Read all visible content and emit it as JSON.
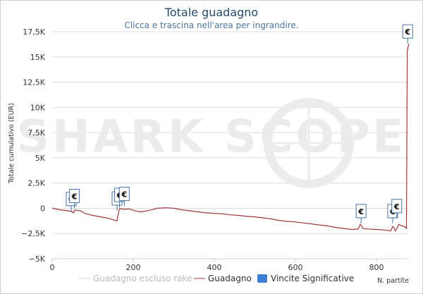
{
  "title": "Totale guadagno",
  "subtitle": "Clicca e trascina nell'area per ingrandire.",
  "watermark": "SHARK SCOPE",
  "colors": {
    "line": "#a0363a",
    "excl_line": "#cccccc",
    "flag_fill": "#ffffff",
    "flag_border": "#4572a7",
    "legend_swatch": "#3d7fd6",
    "grid": "#dddddd",
    "watermark": "#ebebeb"
  },
  "chart_data": {
    "type": "line",
    "title": "Totale guadagno",
    "subtitle": "Clicca e trascina nell'area per ingrandire.",
    "xlabel": "N. partite",
    "ylabel": "Totale cumulativo (EUR)",
    "xlim": [
      0,
      880
    ],
    "ylim": [
      -5000,
      17500
    ],
    "x_ticks": [
      0,
      200,
      400,
      600,
      800
    ],
    "x_tick_labels": [
      "0",
      "200",
      "400",
      "600",
      "800"
    ],
    "y_ticks": [
      -5000,
      -2500,
      0,
      2500,
      5000,
      7500,
      10000,
      12500,
      15000,
      17500
    ],
    "y_tick_labels": [
      "−5K",
      "−2,5K",
      "0",
      "2,5K",
      "5K",
      "7,5K",
      "10K",
      "12,5K",
      "15K",
      "17,5K"
    ],
    "grid": "horizontal",
    "legend_position": "bottom",
    "series": [
      {
        "name": "Guadagno",
        "style": "line",
        "x": [
          0,
          20,
          40,
          50,
          52,
          55,
          57,
          60,
          70,
          80,
          100,
          120,
          140,
          160,
          162,
          165,
          167,
          170,
          180,
          190,
          200,
          210,
          220,
          240,
          260,
          280,
          300,
          320,
          340,
          360,
          380,
          400,
          420,
          440,
          460,
          480,
          500,
          520,
          540,
          560,
          580,
          600,
          620,
          640,
          660,
          680,
          700,
          720,
          740,
          755,
          760,
          763,
          766,
          780,
          800,
          820,
          835,
          840,
          843,
          846,
          850,
          855,
          860,
          865,
          870,
          874,
          876,
          878,
          880
        ],
        "y": [
          0,
          -150,
          -250,
          -350,
          -450,
          -300,
          -150,
          -200,
          -250,
          -500,
          -700,
          -850,
          -1000,
          -1250,
          -800,
          -200,
          0,
          -50,
          -100,
          -50,
          -200,
          -300,
          -350,
          -200,
          0,
          50,
          0,
          -150,
          -250,
          -350,
          -450,
          -500,
          -550,
          -650,
          -700,
          -800,
          -850,
          -950,
          -1050,
          -1200,
          -1300,
          -1350,
          -1450,
          -1550,
          -1650,
          -1750,
          -1900,
          -2000,
          -2100,
          -2050,
          -1600,
          -1700,
          -2000,
          -2050,
          -2100,
          -2150,
          -2250,
          -1800,
          -1900,
          -2250,
          -2000,
          -1600,
          -1700,
          -1750,
          -1850,
          -2000,
          15500,
          16000,
          16300
        ]
      },
      {
        "name": "Guadagno escluso rake",
        "style": "line",
        "x": [],
        "y": []
      },
      {
        "name": "Vincite Significative",
        "style": "flags",
        "marker_text": "€",
        "points": [
          {
            "x": 47,
            "y": -300
          },
          {
            "x": 55,
            "y": 0
          },
          {
            "x": 160,
            "y": -250
          },
          {
            "x": 166,
            "y": 100
          },
          {
            "x": 178,
            "y": 200
          },
          {
            "x": 762,
            "y": -1500
          },
          {
            "x": 840,
            "y": -1500
          },
          {
            "x": 850,
            "y": -1000
          },
          {
            "x": 877,
            "y": 16300
          }
        ]
      }
    ]
  },
  "legend": {
    "excl_label": "Guadagno escluso rake",
    "main_label": "Guadagno",
    "flags_label": "Vincite Significative"
  }
}
